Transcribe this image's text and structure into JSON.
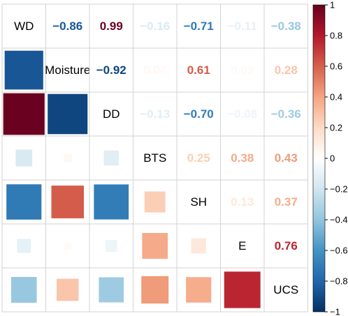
{
  "chart_data": {
    "type": "heatmap",
    "variables": [
      "WD",
      "Moisture",
      "DD",
      "BTS",
      "SH",
      "E",
      "UCS"
    ],
    "matrix": [
      [
        1.0,
        -0.86,
        0.99,
        -0.16,
        -0.71,
        -0.11,
        -0.38
      ],
      [
        -0.86,
        1.0,
        -0.92,
        0.04,
        0.61,
        0.03,
        0.28
      ],
      [
        0.99,
        -0.92,
        1.0,
        -0.13,
        -0.7,
        -0.08,
        -0.36
      ],
      [
        -0.16,
        0.04,
        -0.13,
        1.0,
        0.25,
        0.38,
        0.43
      ],
      [
        -0.71,
        0.61,
        -0.7,
        0.25,
        1.0,
        0.13,
        0.37
      ],
      [
        -0.11,
        0.03,
        -0.08,
        0.38,
        0.13,
        1.0,
        0.76
      ],
      [
        -0.38,
        0.28,
        -0.36,
        0.43,
        0.37,
        0.76,
        1.0
      ]
    ],
    "upper_labels": [
      [
        "",
        "−0.86",
        "0.99",
        "−0.16",
        "−0.71",
        "−0.11",
        "−0.38"
      ],
      [
        "",
        "",
        "−0.92",
        "0.04",
        "0.61",
        "0.03",
        "0.28"
      ],
      [
        "",
        "",
        "",
        "−0.13",
        "−0.70",
        "−0.08",
        "−0.36"
      ],
      [
        "",
        "",
        "",
        "",
        "0.25",
        "0.38",
        "0.43"
      ],
      [
        "",
        "",
        "",
        "",
        "",
        "0.13",
        "0.37"
      ],
      [
        "",
        "",
        "",
        "",
        "",
        "",
        "0.76"
      ],
      [
        "",
        "",
        "",
        "",
        "",
        "",
        ""
      ]
    ],
    "lower_method": "square",
    "upper_method": "number",
    "colorbar": {
      "range": [
        -1,
        1
      ],
      "ticks": [
        "1",
        "0.8",
        "0.6",
        "0.4",
        "0.2",
        "0",
        "−0.2",
        "−0.4",
        "−0.6",
        "−0.8",
        "−1"
      ],
      "tick_values": [
        1,
        0.8,
        0.6,
        0.4,
        0.2,
        0,
        -0.2,
        -0.4,
        -0.6,
        -0.8,
        -1
      ],
      "colors": [
        "#67001F",
        "#B2182B",
        "#D6604D",
        "#F4A582",
        "#FDDBC7",
        "#FFFFFF",
        "#D1E5F0",
        "#92C5DE",
        "#4393C3",
        "#2166AC",
        "#053061"
      ]
    },
    "grid": true
  }
}
